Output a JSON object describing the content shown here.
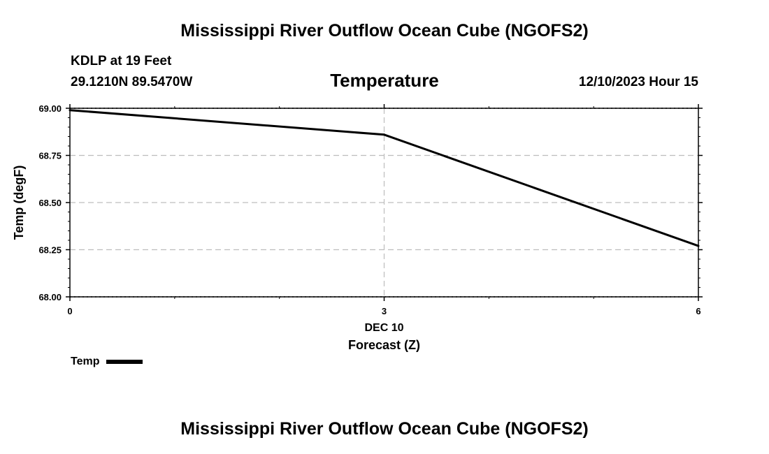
{
  "page": {
    "title_top": "Mississippi River Outflow Ocean Cube (NGOFS2)",
    "title_bottom": "Mississippi River Outflow Ocean Cube (NGOFS2)",
    "station": "KDLP at 19 Feet",
    "coords": "29.1210N  89.5470W",
    "valid_time": "12/10/2023 Hour 15"
  },
  "chart_data": {
    "type": "line",
    "title": "Temperature",
    "ylabel": "Temp (degF)",
    "xlabel": "Forecast (Z)",
    "x_date_label": "DEC 10",
    "x": [
      0,
      3,
      6
    ],
    "x_tick_labels": [
      "0",
      "3",
      "6"
    ],
    "ylim": [
      68.0,
      69.0
    ],
    "xlim": [
      0,
      6
    ],
    "y_ticks": [
      68.0,
      68.25,
      68.5,
      68.75,
      69.0
    ],
    "y_tick_labels": [
      "68.00",
      "68.25",
      "68.50",
      "68.75",
      "69.00"
    ],
    "grid": true,
    "legend_position": "bottom-left",
    "series": [
      {
        "name": "Temp",
        "values": [
          68.99,
          68.86,
          68.27
        ],
        "color": "#000000"
      }
    ]
  }
}
